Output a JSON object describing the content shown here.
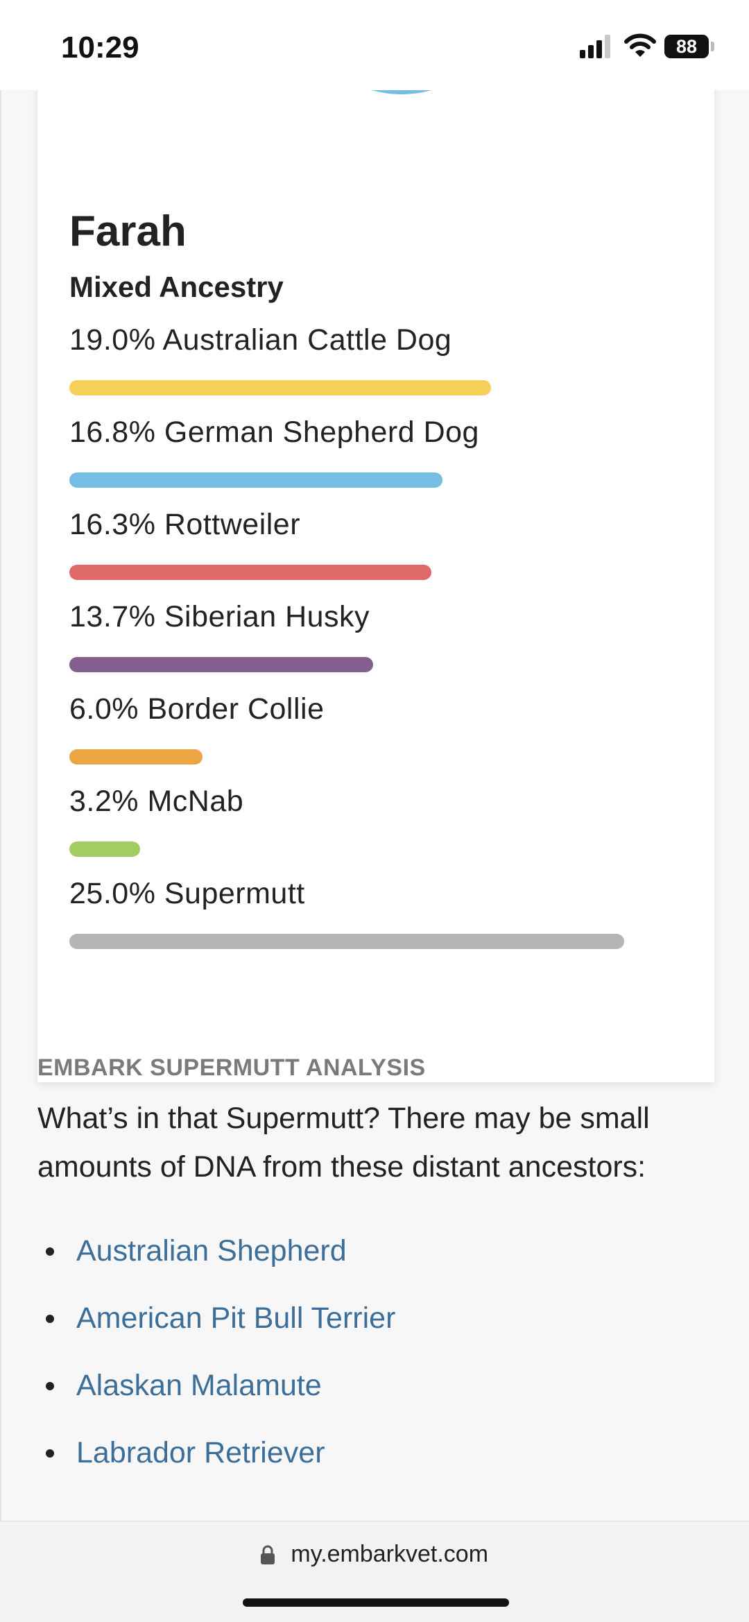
{
  "status_bar": {
    "time": "10:29",
    "battery": "88"
  },
  "card": {
    "dog_name": "Farah",
    "ancestry_heading": "Mixed Ancestry",
    "breeds": [
      {
        "label": "19.0% Australian Cattle Dog",
        "percent": 19.0,
        "color": "#f5cf57"
      },
      {
        "label": "16.8% German Shepherd Dog",
        "percent": 16.8,
        "color": "#76bde3"
      },
      {
        "label": "16.3% Rottweiler",
        "percent": 16.3,
        "color": "#e06a6a"
      },
      {
        "label": "13.7% Siberian Husky",
        "percent": 13.7,
        "color": "#845e8c"
      },
      {
        "label": "6.0% Border Collie",
        "percent": 6.0,
        "color": "#eba542"
      },
      {
        "label": "3.2% McNab",
        "percent": 3.2,
        "color": "#a3cd63"
      },
      {
        "label": "25.0% Supermutt",
        "percent": 25.0,
        "color": "#b5b5b5"
      }
    ]
  },
  "supermutt": {
    "title": "EMBARK SUPERMUTT ANALYSIS",
    "text": "What’s in that Supermutt? There may be small amounts of DNA from these distant ancestors:",
    "ancestors": [
      "Australian Shepherd",
      "American Pit Bull Terrier",
      "Alaskan Malamute",
      "Labrador Retriever"
    ]
  },
  "browser": {
    "url": "my.embarkvet.com"
  },
  "colors": {
    "link": "#3b6f9a",
    "section_title": "#7a7a7a"
  }
}
